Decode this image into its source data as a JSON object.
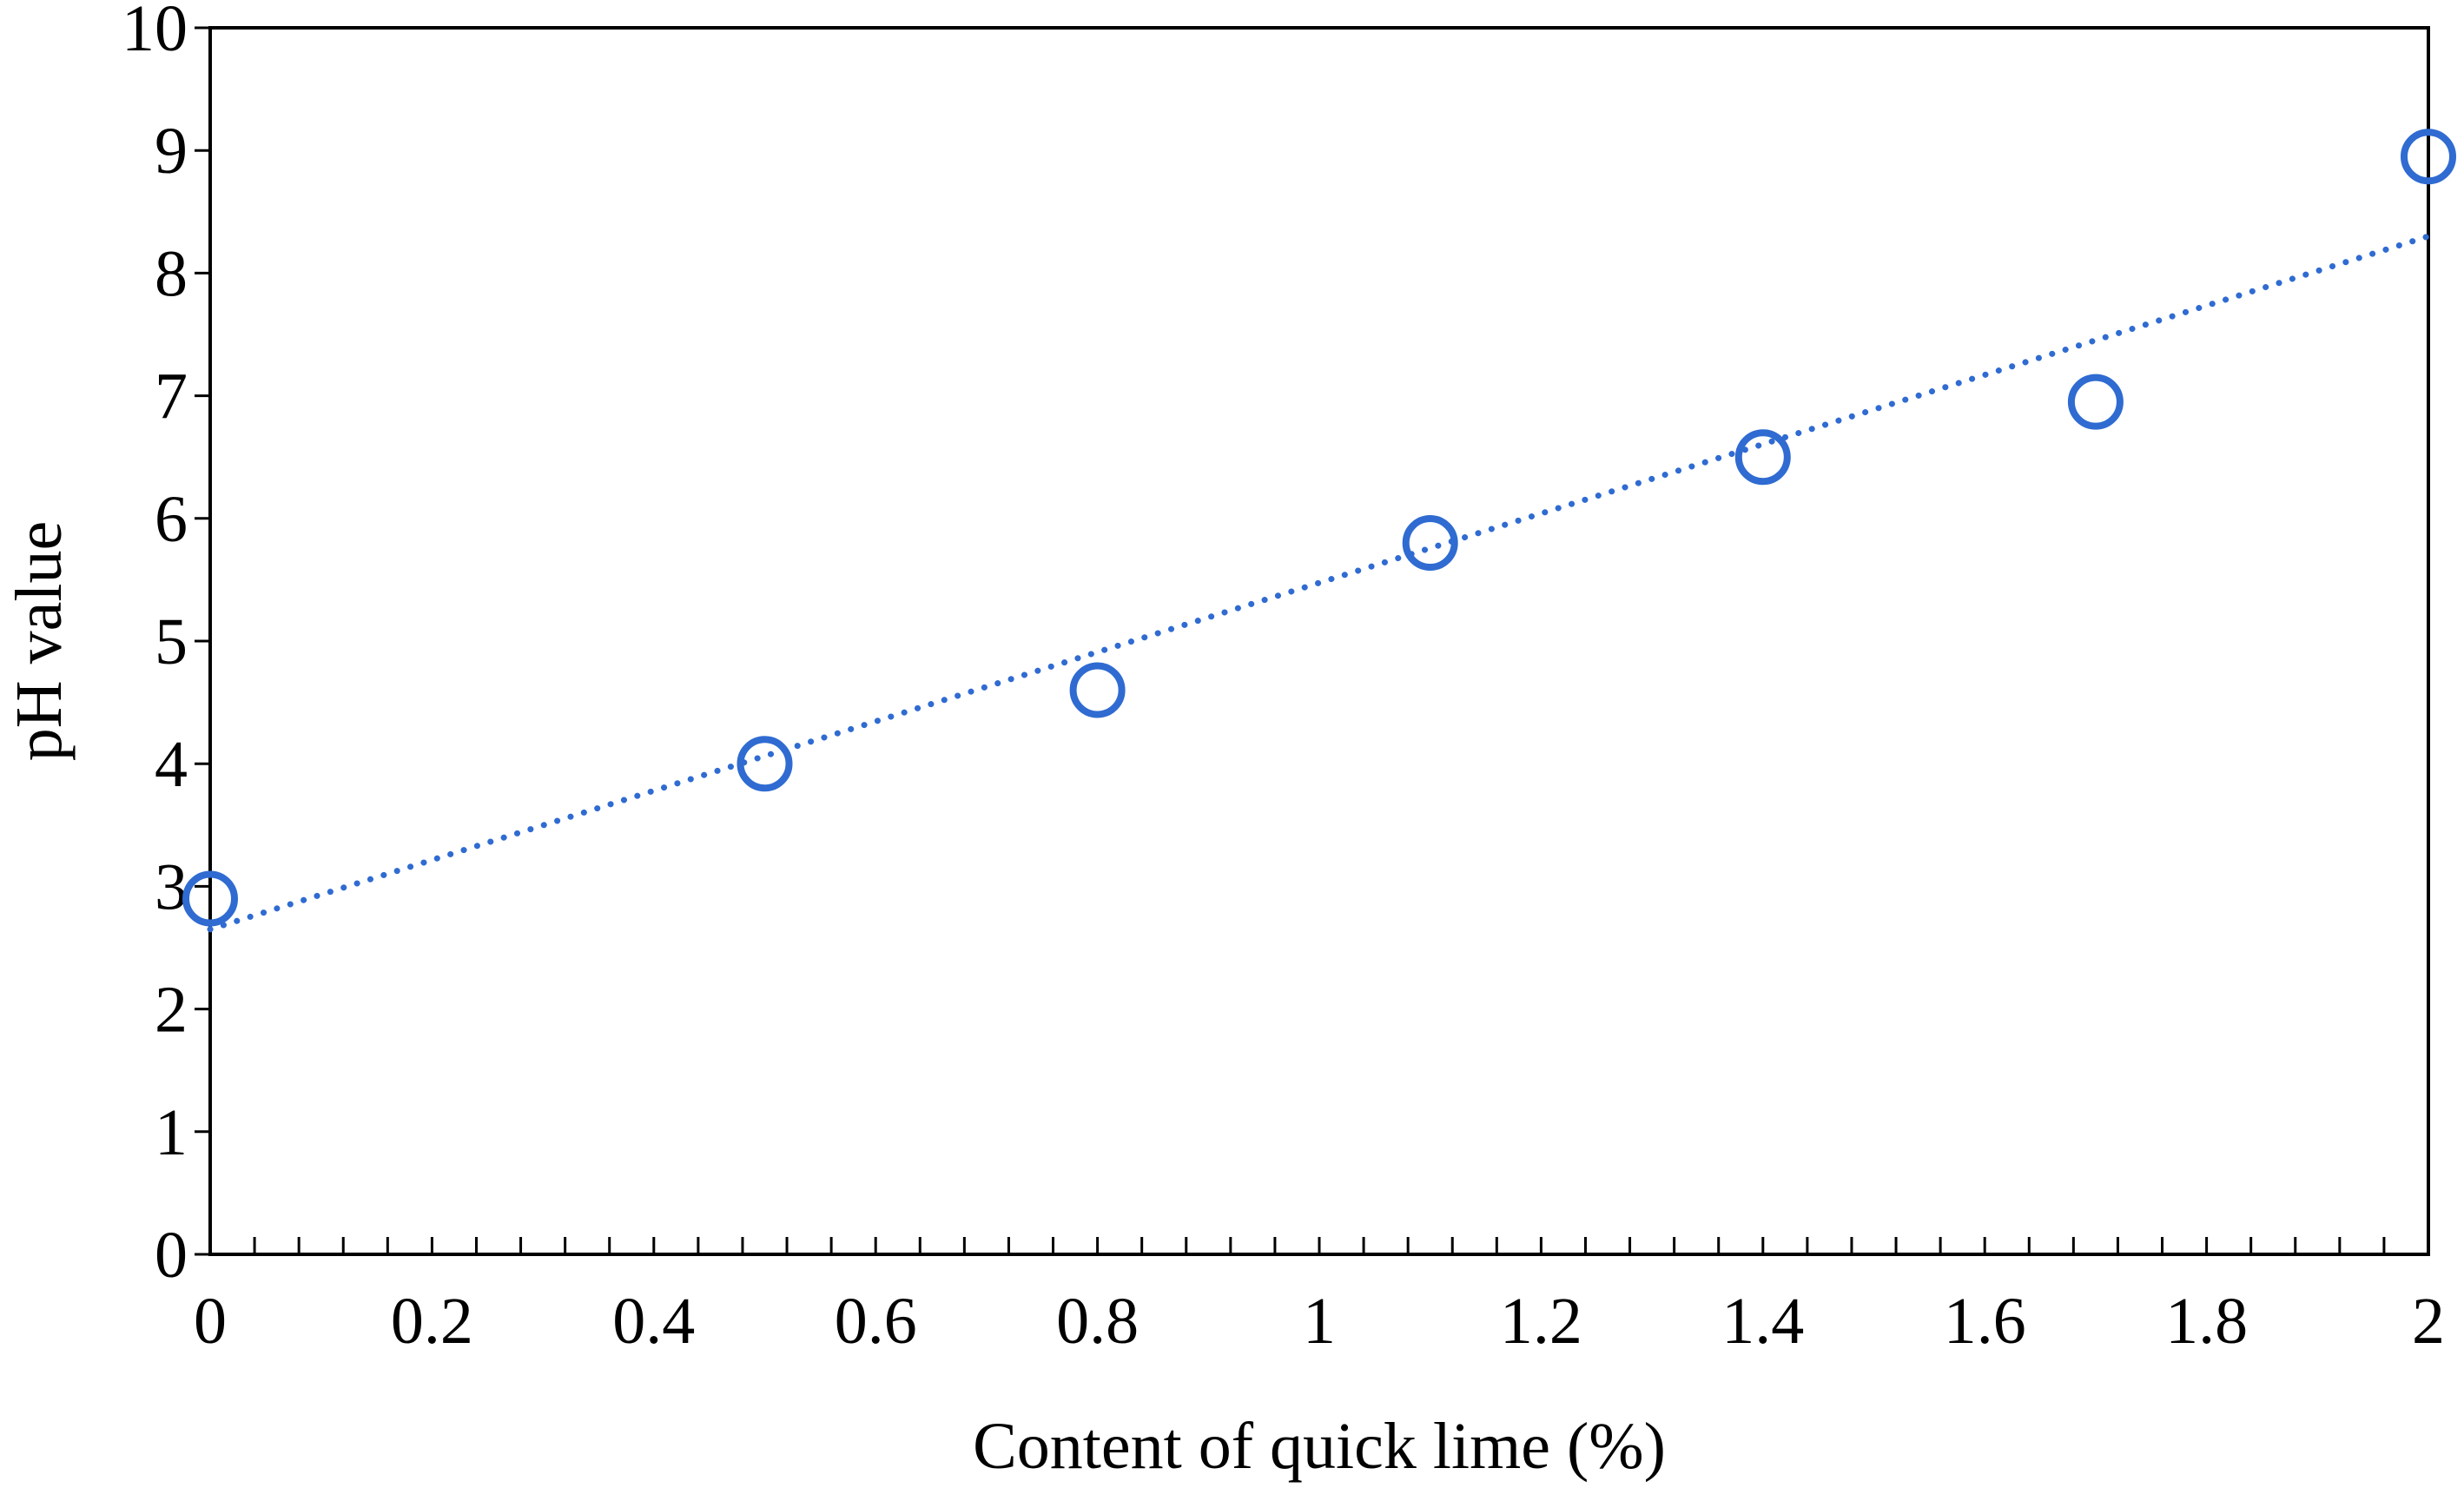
{
  "chart_data": {
    "type": "scatter",
    "title": "",
    "xlabel": "Content of quick lime (%)",
    "ylabel": "pH value",
    "xlim": [
      0,
      2
    ],
    "ylim": [
      0,
      10
    ],
    "x_ticks": [
      "0",
      "0.2",
      "0.4",
      "0.6",
      "0.8",
      "1",
      "1.2",
      "1.4",
      "1.6",
      "1.8",
      "2"
    ],
    "y_ticks": [
      "0",
      "1",
      "2",
      "3",
      "4",
      "5",
      "6",
      "7",
      "8",
      "9",
      "10"
    ],
    "x_minor_step": 0.04,
    "grid": false,
    "legend": "none",
    "series": [
      {
        "name": "pH value",
        "marker": "open-circle",
        "color": "#2F6BD1",
        "x": [
          0,
          0.5,
          0.8,
          1.1,
          1.4,
          1.7,
          2.0
        ],
        "y": [
          2.9,
          4.0,
          4.6,
          5.8,
          6.5,
          6.95,
          8.95
        ]
      }
    ],
    "trendline": {
      "type": "linear",
      "style": "dotted",
      "color": "#2F6BD1",
      "x": [
        0,
        2
      ],
      "y": [
        2.65,
        8.3
      ]
    }
  }
}
